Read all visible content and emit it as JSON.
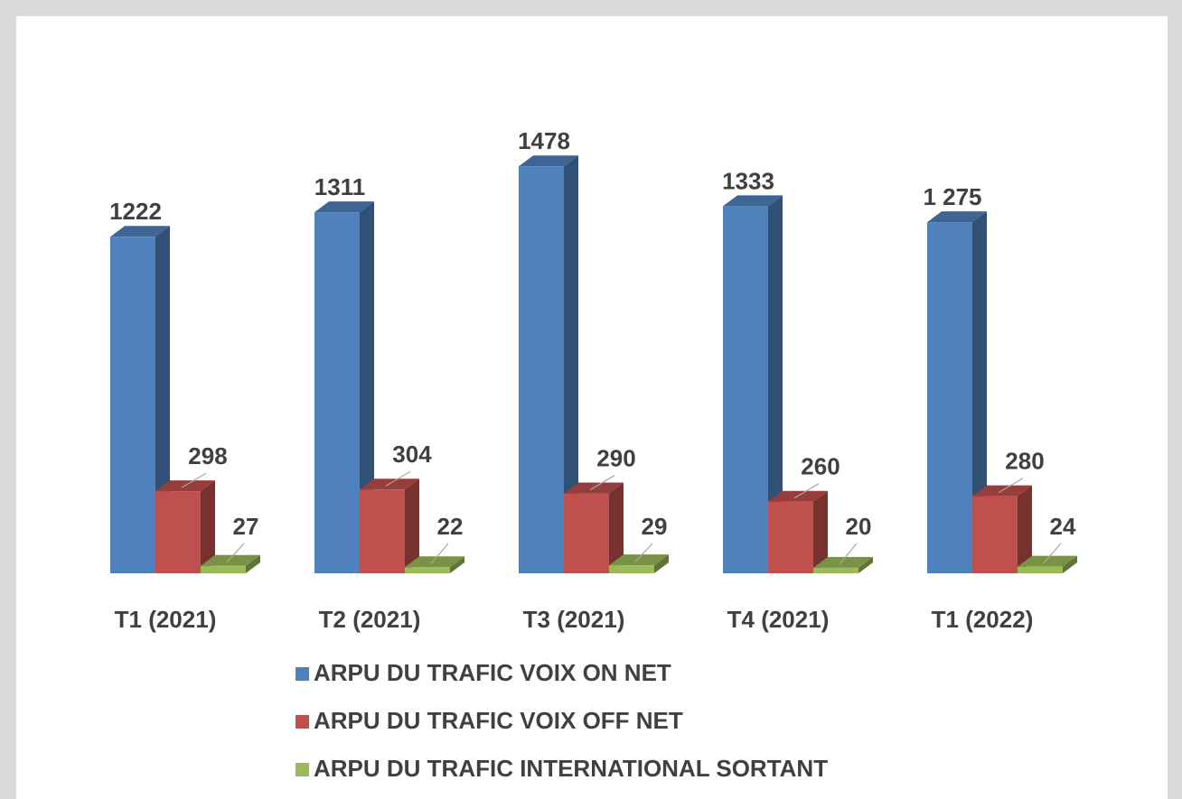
{
  "chart_data": {
    "type": "bar3d",
    "categories": [
      "T1 (2021)",
      "T2 (2021)",
      "T3 (2021)",
      "T4 (2021)",
      "T1 (2022)"
    ],
    "series": [
      {
        "name": "ARPU DU TRAFIC VOIX ON NET",
        "color": "#4f81bd",
        "values": [
          1222,
          1311,
          1478,
          1333,
          1275
        ],
        "value_labels": [
          "1222",
          "1311",
          "1478",
          "1333",
          "1 275"
        ]
      },
      {
        "name": "ARPU DU TRAFIC VOIX OFF NET",
        "color": "#c0504d",
        "values": [
          298,
          304,
          290,
          260,
          280
        ]
      },
      {
        "name": "ARPU DU TRAFIC INTERNATIONAL SORTANT",
        "color": "#9bbb59",
        "values": [
          27,
          22,
          29,
          20,
          24
        ]
      }
    ],
    "legend": "bottom"
  }
}
